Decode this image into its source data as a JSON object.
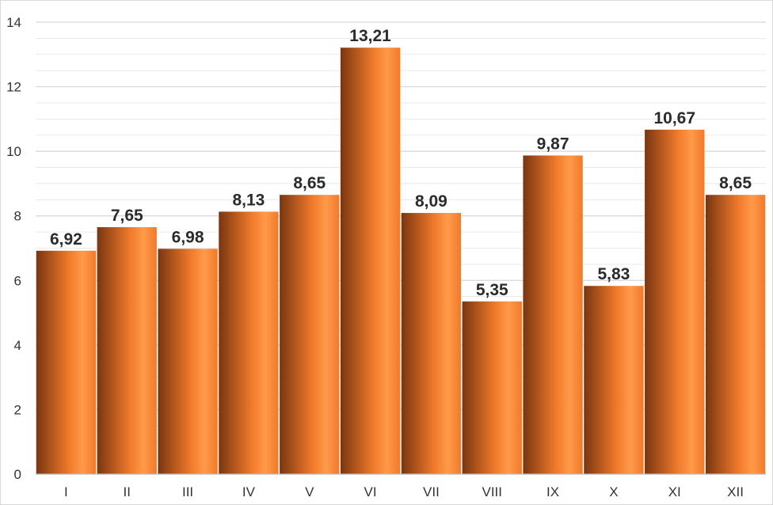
{
  "chart_data": {
    "type": "bar",
    "title": "",
    "xlabel": "",
    "ylabel": "",
    "categories": [
      "I",
      "II",
      "III",
      "IV",
      "V",
      "VI",
      "VII",
      "VIII",
      "IX",
      "X",
      "XI",
      "XII"
    ],
    "values": [
      6.92,
      7.65,
      6.98,
      8.13,
      8.65,
      13.21,
      8.09,
      5.35,
      9.87,
      5.83,
      10.67,
      8.65
    ],
    "value_labels": [
      "6,92",
      "7,65",
      "6,98",
      "8,13",
      "8,65",
      "13,21",
      "8,09",
      "5,35",
      "9,87",
      "5,83",
      "10,67",
      "8,65"
    ],
    "ylim": [
      0,
      14
    ],
    "yticks": [
      0,
      2,
      4,
      6,
      8,
      10,
      12,
      14
    ],
    "grid": true,
    "legend": "none",
    "colors": {
      "bar_light": "#ff9a4a",
      "bar_mid": "#f07a2a",
      "bar_dark": "#7a3610",
      "grid": "#e3e3e3"
    }
  }
}
